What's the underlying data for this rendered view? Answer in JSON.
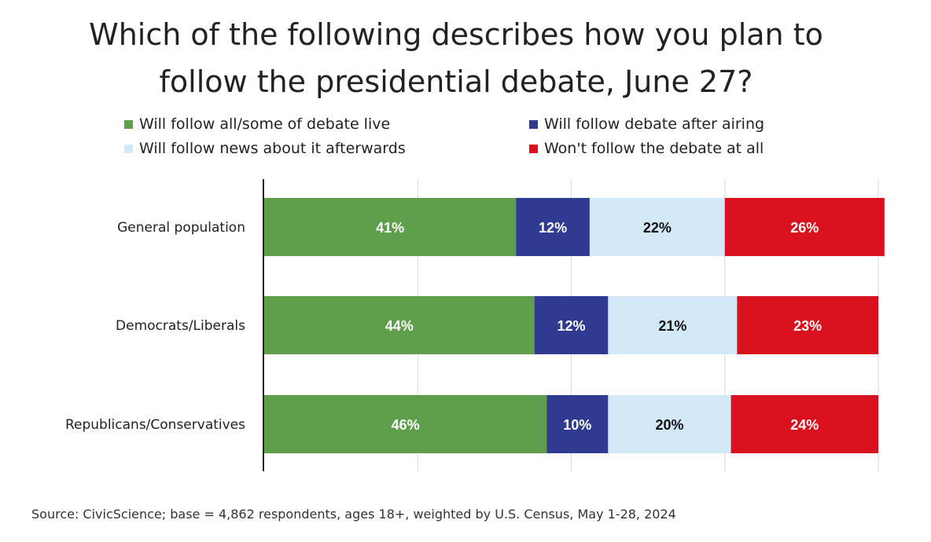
{
  "title_lines": [
    "Which of the following describes how you plan to",
    "follow the presidential debate, June 27?"
  ],
  "source": "Source: CivicScience; base = 4,862 respondents, ages 18+, weighted by U.S. Census, May 1-28, 2024",
  "chart_data": {
    "type": "bar",
    "orientation": "horizontal",
    "stacked": true,
    "title": "Which of the following describes how you plan to follow the presidential debate, June 27?",
    "categories": [
      "General population",
      "Democrats/Liberals",
      "Republicans/Conservatives"
    ],
    "series": [
      {
        "name": "Will follow all/some of debate live",
        "color": "#5f9e4a",
        "label_color": "#ffffff",
        "values": [
          41,
          44,
          46
        ]
      },
      {
        "name": "Will follow debate after airing",
        "color": "#2e3b91",
        "label_color": "#ffffff",
        "values": [
          12,
          12,
          10
        ]
      },
      {
        "name": "Will follow news about it afterwards",
        "color": "#d4e9f7",
        "label_color": "#111111",
        "values": [
          22,
          21,
          20
        ]
      },
      {
        "name": "Won't follow the debate at all",
        "color": "#d9111e",
        "label_color": "#ffffff",
        "values": [
          26,
          23,
          24
        ]
      }
    ],
    "value_suffix": "%",
    "xlim": [
      0,
      100
    ],
    "gridlines": true,
    "legend_position": "top"
  }
}
